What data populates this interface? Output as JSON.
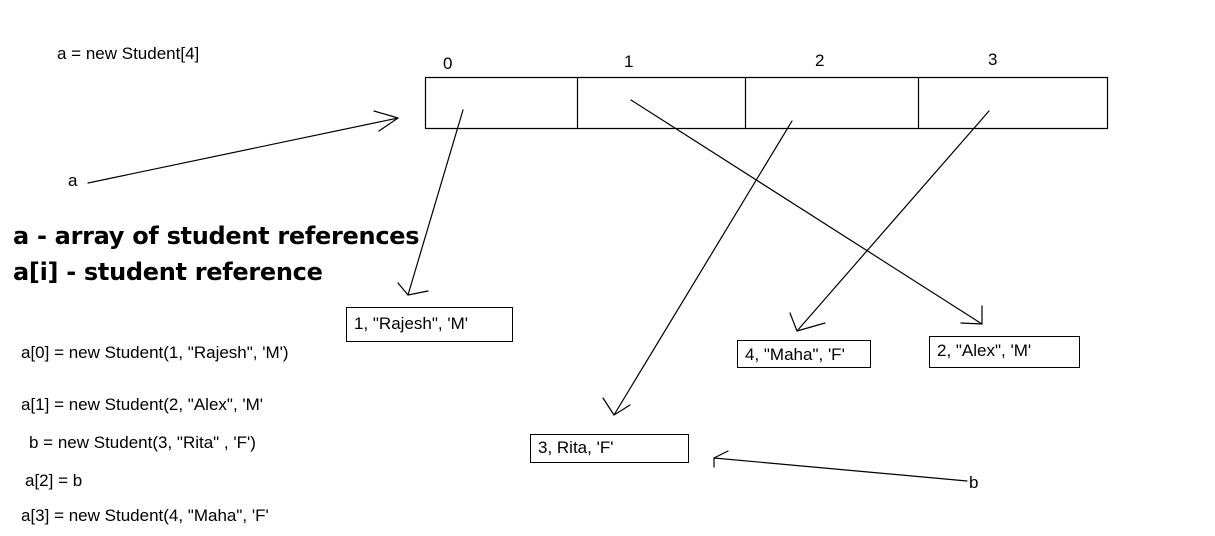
{
  "array_statement": "a = new Student[4]",
  "array_indices": [
    "0",
    "1",
    "2",
    "3"
  ],
  "variable_a": "a",
  "variable_b": "b",
  "notes": {
    "line1": "a - array of student references",
    "line2": "a[i] - student reference"
  },
  "code_lines": [
    "a[0] = new Student(1, \"Rajesh\", 'M')",
    "a[1] = new Student(2, \"Alex\", 'M'",
    "b = new Student(3, \"Rita\" , 'F')",
    "a[2] = b",
    "a[3] = new Student(4, \"Maha\", 'F'"
  ],
  "objects": {
    "rajesh": "1, \"Rajesh\", 'M'",
    "maha": "4, \"Maha\", 'F'",
    "alex": "2, \"Alex\", 'M'",
    "rita": "3, Rita, 'F'"
  },
  "colors": {
    "stroke": "#000000",
    "background": "#ffffff"
  }
}
